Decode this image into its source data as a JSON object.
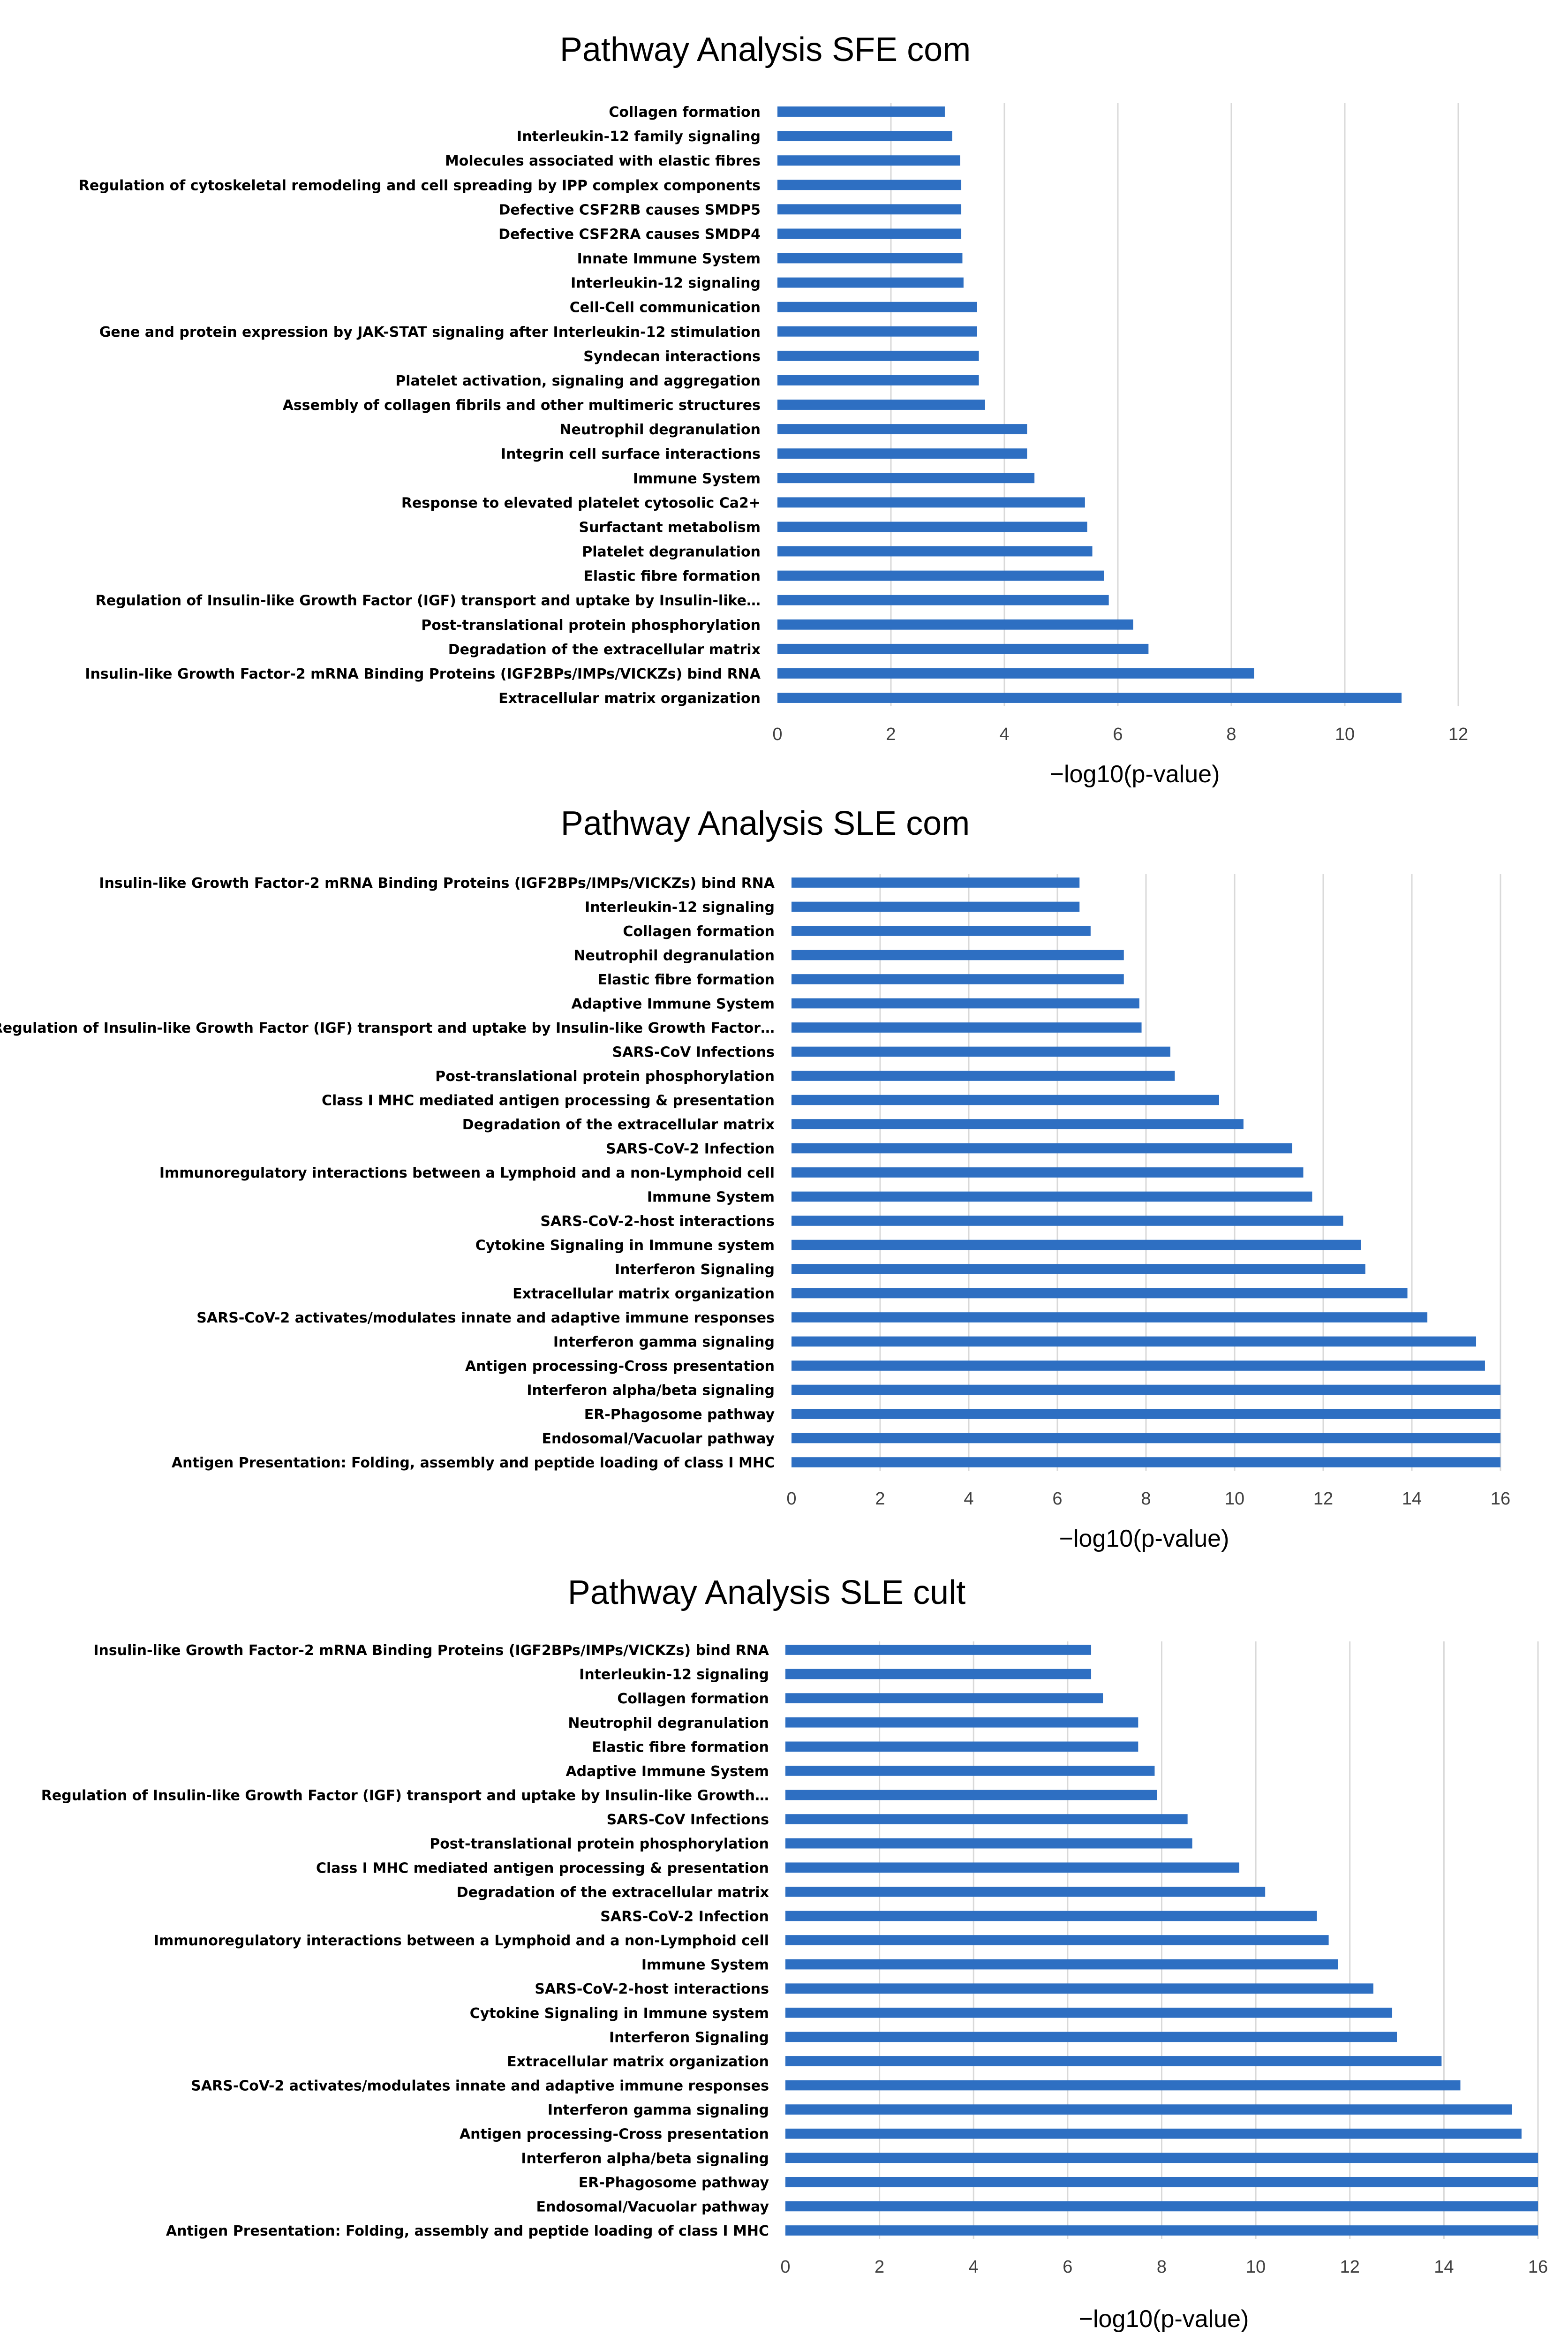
{
  "colors": {
    "bar": "#2e6fc2",
    "grid": "#d9d9d9"
  },
  "chart_data": [
    {
      "type": "bar",
      "orientation": "horizontal",
      "title": "Pathway Analysis SFE com",
      "xlabel": "−log10(p-value)",
      "xlim": [
        0,
        12
      ],
      "xticks": [
        0,
        2,
        4,
        6,
        8,
        10,
        12
      ],
      "grid": true,
      "categories": [
        "Collagen formation",
        "Interleukin-12 family signaling",
        "Molecules associated with elastic fibres",
        "Regulation of cytoskeletal remodeling and cell spreading by IPP complex components",
        "Defective CSF2RB causes SMDP5",
        "Defective CSF2RA causes SMDP4",
        "Innate Immune System",
        "Interleukin-12 signaling",
        "Cell-Cell communication",
        "Gene and protein expression by JAK-STAT signaling after Interleukin-12 stimulation",
        "Syndecan interactions",
        "Platelet activation, signaling and aggregation",
        "Assembly of collagen fibrils and other multimeric structures",
        "Neutrophil degranulation",
        "Integrin cell surface interactions",
        "Immune System",
        "Response to elevated platelet cytosolic Ca2+",
        "Surfactant metabolism",
        "Platelet degranulation",
        "Elastic fibre formation",
        "Regulation of Insulin-like Growth Factor (IGF) transport and uptake by Insulin-like…",
        "Post-translational protein phosphorylation",
        "Degradation of the extracellular matrix",
        "Insulin-like Growth Factor-2 mRNA Binding Proteins (IGF2BPs/IMPs/VICKZs) bind RNA",
        "Extracellular matrix organization"
      ],
      "values": [
        2.95,
        3.08,
        3.22,
        3.24,
        3.24,
        3.24,
        3.26,
        3.28,
        3.52,
        3.52,
        3.55,
        3.55,
        3.66,
        4.4,
        4.4,
        4.53,
        5.42,
        5.46,
        5.55,
        5.76,
        5.84,
        6.27,
        6.54,
        8.4,
        11.0
      ]
    },
    {
      "type": "bar",
      "orientation": "horizontal",
      "title": "Pathway Analysis SLE com",
      "xlabel": "−log10(p-value)",
      "xlim": [
        0,
        16
      ],
      "xticks": [
        0,
        2,
        4,
        6,
        8,
        10,
        12,
        14,
        16
      ],
      "grid": true,
      "categories": [
        "Insulin-like Growth Factor-2 mRNA Binding Proteins (IGF2BPs/IMPs/VICKZs) bind RNA",
        "Interleukin-12 signaling",
        "Collagen formation",
        "Neutrophil degranulation",
        "Elastic fibre formation",
        "Adaptive Immune System",
        "Regulation of Insulin-like Growth Factor (IGF) transport and uptake by Insulin-like Growth Factor…",
        "SARS-CoV Infections",
        "Post-translational protein phosphorylation",
        "Class I MHC mediated antigen processing & presentation",
        "Degradation of the extracellular matrix",
        "SARS-CoV-2 Infection",
        "Immunoregulatory interactions between a Lymphoid and a non-Lymphoid cell",
        "Immune System",
        "SARS-CoV-2-host interactions",
        "Cytokine Signaling in Immune system",
        "Interferon Signaling",
        "Extracellular matrix organization",
        "SARS-CoV-2 activates/modulates innate and adaptive immune responses",
        "Interferon gamma signaling",
        "Antigen processing-Cross presentation",
        "Interferon alpha/beta signaling",
        "ER-Phagosome pathway",
        "Endosomal/Vacuolar pathway",
        "Antigen Presentation: Folding, assembly and peptide loading of class I MHC"
      ],
      "values": [
        6.5,
        6.5,
        6.75,
        7.5,
        7.5,
        7.85,
        7.9,
        8.55,
        8.65,
        9.65,
        10.2,
        11.3,
        11.55,
        11.75,
        12.45,
        12.85,
        12.95,
        13.9,
        14.35,
        15.45,
        15.65,
        16.0,
        16.0,
        16.0,
        16.0
      ]
    },
    {
      "type": "bar",
      "orientation": "horizontal",
      "title": "Pathway Analysis SLE cult",
      "xlabel": "−log10(p-value)",
      "xlim": [
        0,
        16
      ],
      "xticks": [
        0,
        2,
        4,
        6,
        8,
        10,
        12,
        14,
        16
      ],
      "grid": true,
      "categories": [
        "Insulin-like Growth Factor-2 mRNA Binding Proteins (IGF2BPs/IMPs/VICKZs) bind RNA",
        "Interleukin-12 signaling",
        "Collagen formation",
        "Neutrophil degranulation",
        "Elastic fibre formation",
        "Adaptive Immune System",
        "Regulation of Insulin-like Growth Factor (IGF) transport and uptake by Insulin-like Growth…",
        "SARS-CoV Infections",
        "Post-translational protein phosphorylation",
        "Class I MHC mediated antigen processing & presentation",
        "Degradation of the extracellular matrix",
        "SARS-CoV-2 Infection",
        "Immunoregulatory interactions between a Lymphoid and a non-Lymphoid cell",
        "Immune System",
        "SARS-CoV-2-host interactions",
        "Cytokine Signaling in Immune system",
        "Interferon Signaling",
        "Extracellular matrix organization",
        "SARS-CoV-2 activates/modulates innate and adaptive immune responses",
        "Interferon gamma signaling",
        "Antigen processing-Cross presentation",
        "Interferon alpha/beta signaling",
        "ER-Phagosome pathway",
        "Endosomal/Vacuolar pathway",
        "Antigen Presentation: Folding, assembly and peptide loading of class I MHC"
      ],
      "values": [
        6.5,
        6.5,
        6.75,
        7.5,
        7.5,
        7.85,
        7.9,
        8.55,
        8.65,
        9.65,
        10.2,
        11.3,
        11.55,
        11.75,
        12.5,
        12.9,
        13.0,
        13.95,
        14.35,
        15.45,
        15.65,
        16.0,
        16.0,
        16.0,
        16.0
      ]
    }
  ]
}
